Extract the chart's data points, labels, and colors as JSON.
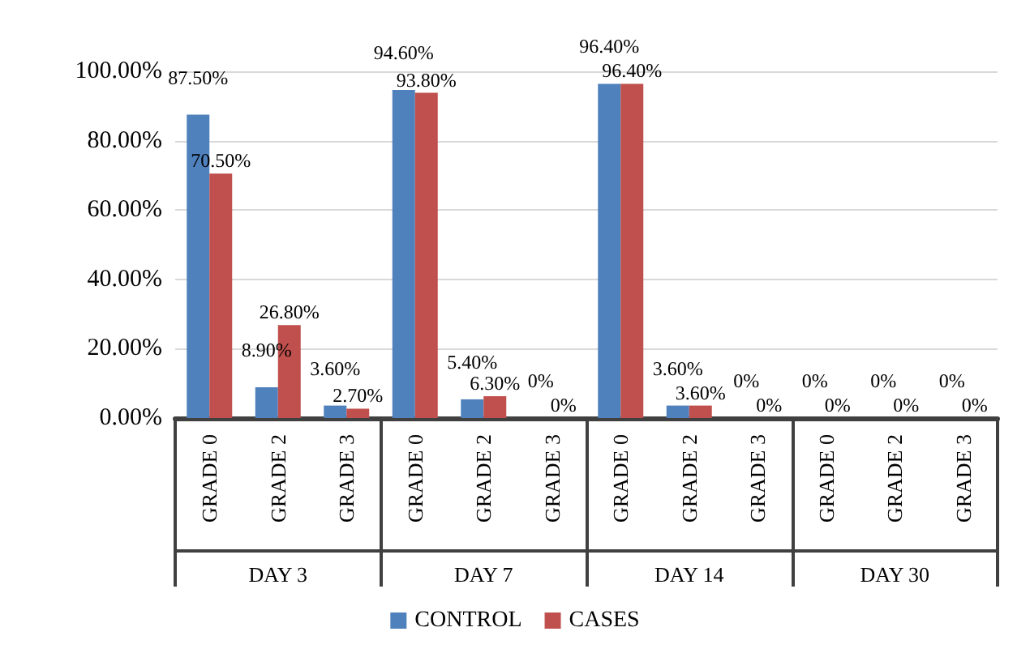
{
  "chart_data": {
    "type": "bar",
    "categories": [
      "GRADE 0",
      "GRADE 2",
      "GRADE 3",
      "GRADE 0",
      "GRADE 2",
      "GRADE 3",
      "GRADE 0",
      "GRADE 2",
      "GRADE 3",
      "GRADE 0",
      "GRADE 2",
      "GRADE 3"
    ],
    "annotations": [
      "DAY 3",
      "DAY 7",
      "DAY 14",
      "DAY 30"
    ],
    "series": [
      {
        "name": "CONTROL",
        "color": "#4f81bd",
        "values": [
          87.5,
          8.9,
          3.6,
          94.6,
          5.4,
          0,
          96.4,
          3.6,
          0,
          0,
          0,
          0
        ],
        "value_labels": [
          "87.50%",
          "8.90%",
          "3.60%",
          "94.60%",
          "5.40%",
          "0%",
          "96.40%",
          "3.60%",
          "0%",
          "0%",
          "0%",
          "0%"
        ]
      },
      {
        "name": "CASES",
        "color": "#c0504d",
        "values": [
          70.5,
          26.8,
          2.7,
          93.8,
          6.3,
          0,
          96.4,
          3.6,
          0,
          0,
          0,
          0
        ],
        "value_labels": [
          "70.50%",
          "26.80%",
          "2.70%",
          "93.80%",
          "6.30%",
          "0%",
          "96.40%",
          "3.60%",
          "0%",
          "0%",
          "0%",
          "0%"
        ]
      }
    ],
    "ylim": [
      0,
      100
    ],
    "yticks": [
      {
        "value": 0,
        "label": "0.00%"
      },
      {
        "value": 20,
        "label": "20.00%"
      },
      {
        "value": 40,
        "label": "40.00%"
      },
      {
        "value": 60,
        "label": "60.00%"
      },
      {
        "value": 80,
        "label": "80.00%"
      },
      {
        "value": 100,
        "label": "100.00%"
      }
    ],
    "grid": "y",
    "legend": "bottom"
  }
}
